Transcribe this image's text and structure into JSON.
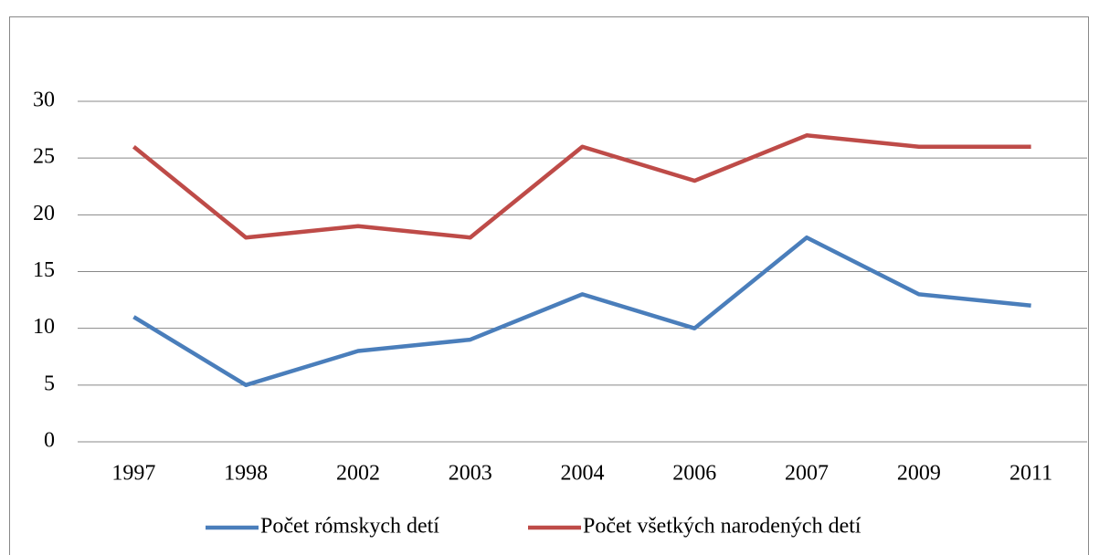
{
  "chart_data": {
    "type": "line",
    "categories": [
      "1997",
      "1998",
      "2002",
      "2003",
      "2004",
      "2006",
      "2007",
      "2009",
      "2011"
    ],
    "series": [
      {
        "name": "Počet rómskych detí",
        "color": "#4a7ebb",
        "values": [
          11,
          5,
          8,
          9,
          13,
          10,
          18,
          13,
          12
        ]
      },
      {
        "name": "Počet všetkých narodených detí",
        "color": "#be4b48",
        "values": [
          26,
          18,
          19,
          18,
          26,
          23,
          27,
          26,
          26
        ]
      }
    ],
    "ylim": [
      0,
      30
    ],
    "yticks": [
      0,
      5,
      10,
      15,
      20,
      25,
      30
    ],
    "grid": true,
    "legend": "bottom"
  }
}
